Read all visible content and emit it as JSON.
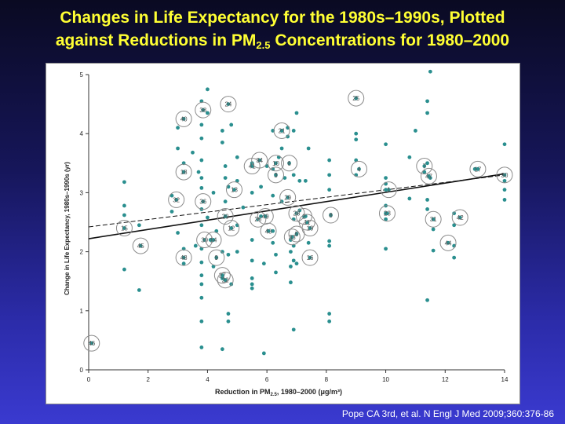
{
  "title": {
    "line1": "Changes in Life Expectancy for the 1980s–1990s, Plotted",
    "line2_prefix": "against Reductions in PM",
    "line2_sub": "2.5",
    "line2_suffix": " Concentrations for 1980–2000"
  },
  "citation": "Pope CA 3rd, et al. N Engl J Med 2009;360:376-86",
  "colors": {
    "point": "#2a8f8f",
    "label_circle": "#8a8a8a",
    "axis": "#333333",
    "title": "#ffff33"
  },
  "chart_data": {
    "type": "scatter",
    "title": "",
    "xlabel_prefix": "Reduction in PM",
    "xlabel_sub": "2.5",
    "xlabel_suffix": ", 1980–2000 (μg/m³)",
    "ylabel": "Change in Life Expectancy, 1980s–1990s (yr)",
    "xlim": [
      0,
      14
    ],
    "ylim": [
      0,
      5
    ],
    "xticks": [
      0,
      2,
      4,
      6,
      8,
      10,
      12,
      14
    ],
    "yticks": [
      0,
      1,
      2,
      3,
      4,
      5
    ],
    "grid": false,
    "points": [
      [
        0.1,
        0.45
      ],
      [
        1.2,
        3.18
      ],
      [
        1.2,
        2.78
      ],
      [
        1.2,
        2.62
      ],
      [
        1.2,
        1.7
      ],
      [
        1.7,
        2.45
      ],
      [
        1.7,
        1.35
      ],
      [
        2.8,
        2.95
      ],
      [
        2.8,
        2.68
      ],
      [
        3.0,
        4.1
      ],
      [
        3.0,
        3.75
      ],
      [
        3.0,
        2.32
      ],
      [
        3.2,
        1.8
      ],
      [
        3.2,
        2.05
      ],
      [
        3.2,
        3.5
      ],
      [
        3.5,
        3.68
      ],
      [
        3.6,
        2.1
      ],
      [
        3.7,
        3.35
      ],
      [
        3.8,
        4.55
      ],
      [
        3.8,
        4.15
      ],
      [
        3.8,
        3.92
      ],
      [
        3.8,
        3.55
      ],
      [
        3.8,
        3.25
      ],
      [
        3.8,
        3.08
      ],
      [
        3.8,
        2.72
      ],
      [
        3.8,
        2.45
      ],
      [
        3.8,
        2.05
      ],
      [
        3.8,
        1.82
      ],
      [
        3.8,
        1.6
      ],
      [
        3.8,
        1.45
      ],
      [
        3.8,
        1.22
      ],
      [
        3.8,
        0.82
      ],
      [
        3.8,
        0.38
      ],
      [
        4.0,
        4.75
      ],
      [
        4.0,
        4.35
      ],
      [
        4.0,
        2.58
      ],
      [
        4.1,
        2.2
      ],
      [
        4.2,
        1.75
      ],
      [
        4.2,
        3.0
      ],
      [
        4.3,
        2.35
      ],
      [
        4.5,
        4.05
      ],
      [
        4.5,
        3.85
      ],
      [
        4.5,
        2.0
      ],
      [
        4.5,
        1.55
      ],
      [
        4.5,
        0.35
      ],
      [
        4.6,
        3.45
      ],
      [
        4.6,
        3.25
      ],
      [
        4.6,
        2.85
      ],
      [
        4.7,
        3.1
      ],
      [
        4.7,
        1.95
      ],
      [
        4.7,
        0.95
      ],
      [
        4.7,
        0.82
      ],
      [
        4.8,
        4.15
      ],
      [
        4.8,
        1.45
      ],
      [
        5.0,
        3.6
      ],
      [
        5.0,
        3.2
      ],
      [
        5.0,
        2.45
      ],
      [
        5.0,
        2.0
      ],
      [
        5.2,
        2.75
      ],
      [
        5.5,
        3.5
      ],
      [
        5.5,
        3.0
      ],
      [
        5.5,
        2.2
      ],
      [
        5.5,
        1.85
      ],
      [
        5.5,
        1.55
      ],
      [
        5.5,
        1.45
      ],
      [
        5.5,
        1.38
      ],
      [
        5.8,
        3.1
      ],
      [
        5.8,
        2.6
      ],
      [
        5.9,
        1.8
      ],
      [
        5.9,
        0.28
      ],
      [
        6.0,
        3.45
      ],
      [
        6.2,
        4.05
      ],
      [
        6.2,
        3.4
      ],
      [
        6.2,
        2.95
      ],
      [
        6.2,
        2.35
      ],
      [
        6.2,
        2.15
      ],
      [
        6.3,
        1.95
      ],
      [
        6.3,
        1.65
      ],
      [
        6.4,
        3.6
      ],
      [
        6.5,
        3.75
      ],
      [
        6.5,
        2.85
      ],
      [
        6.6,
        3.25
      ],
      [
        6.7,
        4.1
      ],
      [
        6.7,
        3.95
      ],
      [
        6.8,
        2.2
      ],
      [
        6.8,
        2.0
      ],
      [
        6.8,
        1.75
      ],
      [
        6.8,
        1.48
      ],
      [
        6.9,
        4.05
      ],
      [
        6.9,
        3.3
      ],
      [
        6.9,
        2.55
      ],
      [
        6.9,
        2.1
      ],
      [
        6.9,
        1.85
      ],
      [
        6.9,
        0.68
      ],
      [
        7.0,
        4.35
      ],
      [
        7.0,
        2.65
      ],
      [
        7.0,
        1.8
      ],
      [
        7.1,
        3.2
      ],
      [
        7.1,
        2.7
      ],
      [
        7.3,
        3.2
      ],
      [
        7.3,
        2.6
      ],
      [
        7.4,
        3.75
      ],
      [
        7.4,
        2.15
      ],
      [
        8.1,
        3.55
      ],
      [
        8.1,
        3.3
      ],
      [
        8.1,
        3.05
      ],
      [
        8.1,
        2.18
      ],
      [
        8.1,
        2.1
      ],
      [
        8.1,
        0.95
      ],
      [
        8.1,
        0.82
      ],
      [
        9.0,
        4.0
      ],
      [
        9.0,
        3.9
      ],
      [
        9.0,
        3.55
      ],
      [
        9.0,
        3.3
      ],
      [
        10.0,
        3.82
      ],
      [
        10.0,
        3.25
      ],
      [
        10.0,
        3.15
      ],
      [
        10.0,
        3.05
      ],
      [
        10.0,
        2.78
      ],
      [
        10.0,
        2.65
      ],
      [
        10.0,
        2.55
      ],
      [
        10.0,
        2.05
      ],
      [
        10.8,
        3.6
      ],
      [
        10.8,
        2.9
      ],
      [
        11.0,
        4.05
      ],
      [
        11.3,
        3.35
      ],
      [
        11.4,
        4.55
      ],
      [
        11.4,
        4.35
      ],
      [
        11.4,
        3.5
      ],
      [
        11.4,
        2.88
      ],
      [
        11.4,
        2.72
      ],
      [
        11.4,
        1.18
      ],
      [
        11.5,
        5.05
      ],
      [
        11.5,
        3.25
      ],
      [
        11.6,
        2.38
      ],
      [
        11.6,
        2.02
      ],
      [
        12.3,
        2.65
      ],
      [
        12.3,
        2.45
      ],
      [
        12.3,
        2.1
      ],
      [
        12.3,
        1.9
      ],
      [
        13.0,
        3.4
      ],
      [
        14.0,
        3.82
      ],
      [
        14.0,
        3.2
      ],
      [
        14.0,
        3.05
      ],
      [
        14.0,
        2.88
      ]
    ],
    "labeled_points": [
      {
        "label": "46",
        "x": 0.1,
        "y": 0.45
      },
      {
        "label": "15",
        "x": 1.2,
        "y": 2.4
      },
      {
        "label": "45",
        "x": 1.75,
        "y": 2.1
      },
      {
        "label": "32",
        "x": 2.95,
        "y": 2.88
      },
      {
        "label": "40",
        "x": 3.2,
        "y": 4.25
      },
      {
        "label": "18",
        "x": 3.2,
        "y": 3.35
      },
      {
        "label": "48",
        "x": 3.2,
        "y": 1.9
      },
      {
        "label": "38",
        "x": 3.85,
        "y": 4.4
      },
      {
        "label": "36",
        "x": 3.85,
        "y": 2.85
      },
      {
        "label": "39",
        "x": 3.9,
        "y": 2.2
      },
      {
        "label": "14",
        "x": 4.2,
        "y": 2.2
      },
      {
        "label": "9",
        "x": 4.3,
        "y": 1.9
      },
      {
        "label": "27",
        "x": 4.5,
        "y": 1.6
      },
      {
        "label": "22",
        "x": 4.6,
        "y": 1.52
      },
      {
        "label": "20",
        "x": 4.6,
        "y": 2.6
      },
      {
        "label": "12",
        "x": 4.8,
        "y": 2.4
      },
      {
        "label": "24",
        "x": 4.7,
        "y": 4.5
      },
      {
        "label": "13",
        "x": 4.9,
        "y": 3.05
      },
      {
        "label": "41",
        "x": 5.5,
        "y": 3.45
      },
      {
        "label": "34",
        "x": 5.75,
        "y": 3.55
      },
      {
        "label": "26",
        "x": 5.7,
        "y": 2.55
      },
      {
        "label": "49",
        "x": 5.95,
        "y": 2.6
      },
      {
        "label": "43",
        "x": 6.05,
        "y": 2.35
      },
      {
        "label": "10",
        "x": 6.3,
        "y": 3.5
      },
      {
        "label": "3",
        "x": 6.3,
        "y": 3.3
      },
      {
        "label": "21",
        "x": 6.5,
        "y": 4.05
      },
      {
        "label": "6",
        "x": 6.75,
        "y": 3.5
      },
      {
        "label": "29",
        "x": 6.7,
        "y": 2.92
      },
      {
        "label": "33",
        "x": 6.85,
        "y": 2.25
      },
      {
        "label": "5",
        "x": 7.0,
        "y": 2.3
      },
      {
        "label": "28",
        "x": 7.0,
        "y": 2.65
      },
      {
        "label": "2",
        "x": 7.25,
        "y": 2.6
      },
      {
        "label": "11",
        "x": 7.35,
        "y": 2.5
      },
      {
        "label": "19",
        "x": 7.45,
        "y": 2.4
      },
      {
        "label": "16",
        "x": 7.45,
        "y": 1.9
      },
      {
        "label": "8",
        "x": 8.15,
        "y": 2.62
      },
      {
        "label": "25",
        "x": 9.0,
        "y": 4.6
      },
      {
        "label": "4",
        "x": 9.1,
        "y": 3.4
      },
      {
        "label": "1",
        "x": 10.1,
        "y": 3.05
      },
      {
        "label": "23",
        "x": 10.05,
        "y": 2.65
      },
      {
        "label": "7",
        "x": 11.3,
        "y": 3.45
      },
      {
        "label": "47",
        "x": 11.45,
        "y": 3.28
      },
      {
        "label": "31",
        "x": 11.6,
        "y": 2.55
      },
      {
        "label": "44",
        "x": 12.1,
        "y": 2.15
      },
      {
        "label": "42",
        "x": 12.5,
        "y": 2.58
      },
      {
        "label": "17",
        "x": 13.1,
        "y": 3.4
      },
      {
        "label": "30",
        "x": 14.0,
        "y": 3.3
      }
    ],
    "lines": [
      {
        "style": "solid",
        "x": [
          0,
          14
        ],
        "y": [
          2.22,
          3.32
        ]
      },
      {
        "style": "dashed",
        "x": [
          0,
          14
        ],
        "y": [
          2.42,
          3.3
        ]
      }
    ]
  }
}
